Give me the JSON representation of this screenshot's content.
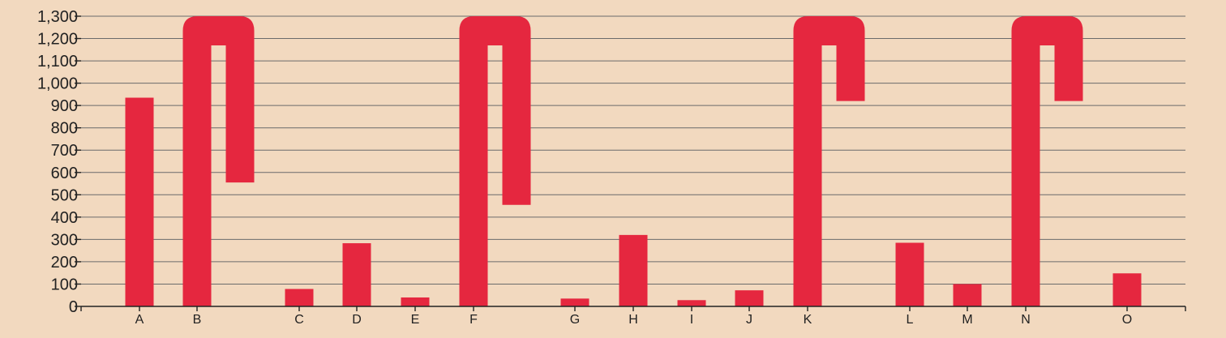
{
  "chart_data": {
    "type": "bar",
    "title": "",
    "xlabel": "",
    "ylabel": "",
    "ylim": [
      0,
      1300
    ],
    "yticks": [
      0,
      100,
      200,
      300,
      400,
      500,
      600,
      700,
      800,
      900,
      1000,
      1100,
      1200,
      1300
    ],
    "ytick_labels": [
      "0",
      "100",
      "200",
      "300",
      "400",
      "500",
      "600",
      "700",
      "800",
      "900",
      "1,000",
      "1,100",
      "1,200",
      "1,300"
    ],
    "grid": true,
    "bar_color": "#e5273f",
    "bars": [
      {
        "label": "A",
        "value": 935,
        "shape": "bar"
      },
      {
        "label": "B",
        "value": 1300,
        "shape": "hook",
        "end_value": 555
      },
      {
        "label": "C",
        "value": 78,
        "shape": "bar"
      },
      {
        "label": "D",
        "value": 283,
        "shape": "bar"
      },
      {
        "label": "E",
        "value": 40,
        "shape": "bar"
      },
      {
        "label": "F",
        "value": 1300,
        "shape": "hook",
        "end_value": 455
      },
      {
        "label": "G",
        "value": 35,
        "shape": "bar"
      },
      {
        "label": "H",
        "value": 320,
        "shape": "bar"
      },
      {
        "label": "I",
        "value": 28,
        "shape": "bar"
      },
      {
        "label": "J",
        "value": 72,
        "shape": "bar"
      },
      {
        "label": "K",
        "value": 1300,
        "shape": "hook",
        "end_value": 920
      },
      {
        "label": "L",
        "value": 285,
        "shape": "bar"
      },
      {
        "label": "M",
        "value": 100,
        "shape": "bar"
      },
      {
        "label": "N",
        "value": 1300,
        "shape": "hook",
        "end_value": 920
      },
      {
        "label": "O",
        "value": 148,
        "shape": "bar"
      }
    ]
  }
}
